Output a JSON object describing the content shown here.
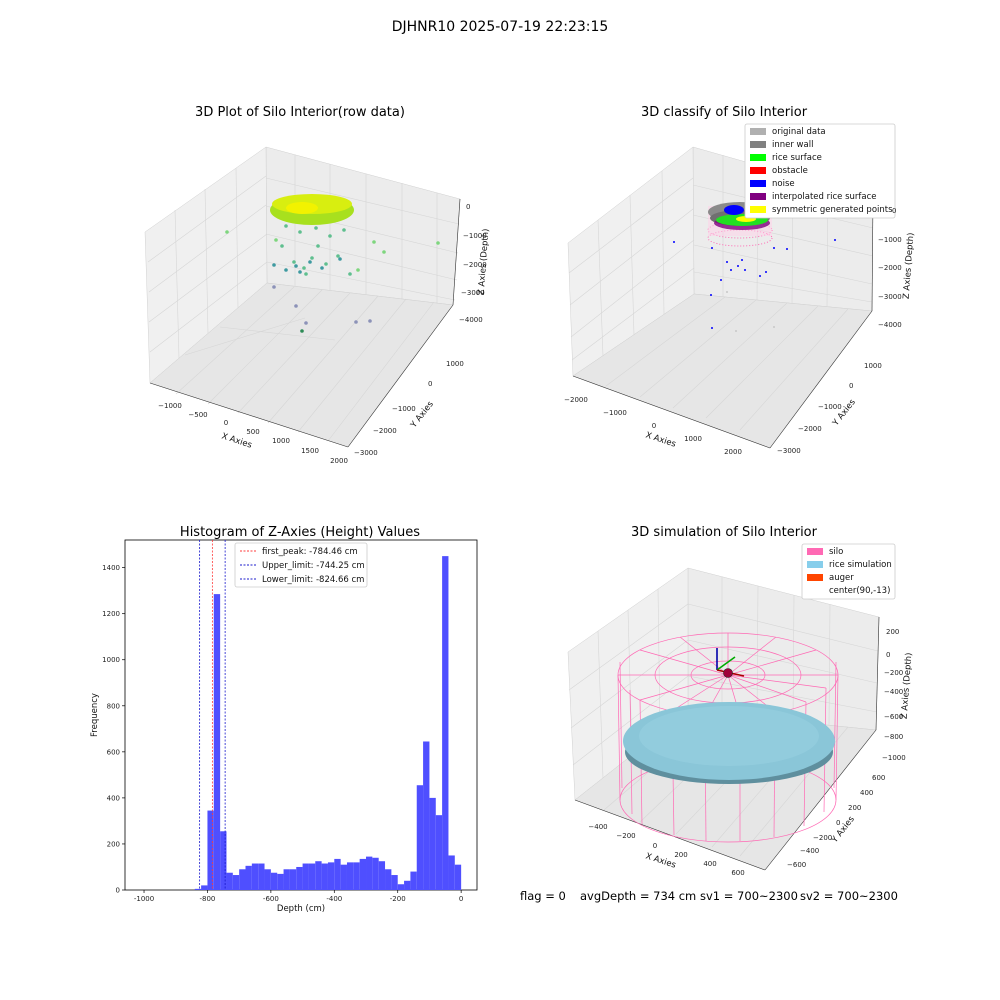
{
  "figure": {
    "title": "DJHNR10 2025-07-19 22:23:15",
    "status_line": {
      "flag": "flag = 0",
      "avg_depth": "avgDepth = 734 cm",
      "sv1": "sv1 = 700~2300",
      "sv2": "sv2 = 700~2300"
    }
  },
  "colors": {
    "histogram_bar": "#4f4fff",
    "peak_line": "#ff3b3b",
    "limit_line": "#1b1bcc",
    "silo": "#ff69b4",
    "rice_simulation": "#87ceeb",
    "auger": "#ff4500",
    "original_data": "#b0b0b0",
    "inner_wall": "#808080",
    "rice_surface": "#00ff00",
    "obstacle": "#ff0000",
    "noise": "#0000ff",
    "interpolated_rice_surface": "#800080",
    "symmetric_generated_points": "#ffff00"
  },
  "chart_data": [
    {
      "type": "scatter",
      "projection": "3d",
      "title": "3D Plot of Silo Interior(row data)",
      "xlabel": "X Axies",
      "ylabel": "Y Axies",
      "zlabel": "Z Axies (Depth)",
      "x_ticks": [
        "−1000",
        "−500",
        "0",
        "500",
        "1000",
        "1500",
        "2000"
      ],
      "y_ticks": [
        "1000",
        "0",
        "−1000",
        "−2000",
        "−3000"
      ],
      "z_ticks": [
        "0",
        "−1000",
        "−2000",
        "−3000",
        "−4000"
      ],
      "xlim": [
        -1200,
        2000
      ],
      "ylim": [
        -3000,
        1500
      ],
      "zlim": [
        -4500,
        300
      ]
    },
    {
      "type": "scatter",
      "projection": "3d",
      "title": "3D classify of Silo Interior",
      "xlabel": "X Axies",
      "ylabel": "Y Axies",
      "zlabel": "Z Axies (Depth)",
      "x_ticks": [
        "−2000",
        "−1000",
        "0",
        "1000",
        "2000"
      ],
      "y_ticks": [
        "1000",
        "0",
        "−1000",
        "−2000",
        "−3000"
      ],
      "z_ticks": [
        "0",
        "−1000",
        "−2000",
        "−3000",
        "−4000"
      ],
      "legend_position": "top-right",
      "legend": [
        {
          "label": "original data",
          "color": "#b0b0b0"
        },
        {
          "label": "inner wall",
          "color": "#808080"
        },
        {
          "label": "rice surface",
          "color": "#00ff00"
        },
        {
          "label": "obstacle",
          "color": "#ff0000"
        },
        {
          "label": "noise",
          "color": "#0000ff"
        },
        {
          "label": "interpolated rice surface",
          "color": "#800080"
        },
        {
          "label": "symmetric generated points",
          "color": "#ffff00"
        }
      ]
    },
    {
      "type": "bar",
      "title": "Histogram of Z-Axies (Height) Values",
      "xlabel": "Depth (cm)",
      "ylabel": "Frequency",
      "xlim": [
        -1060,
        50
      ],
      "ylim": [
        0,
        1520
      ],
      "x_ticks": [
        -1000,
        -800,
        -600,
        -400,
        -200,
        0
      ],
      "y_ticks": [
        0,
        200,
        400,
        600,
        800,
        1000,
        1200,
        1400
      ],
      "bin_width": 20,
      "bin_starts": [
        -840,
        -820,
        -800,
        -780,
        -760,
        -740,
        -720,
        -700,
        -680,
        -660,
        -640,
        -620,
        -600,
        -580,
        -560,
        -540,
        -520,
        -500,
        -480,
        -460,
        -440,
        -420,
        -400,
        -380,
        -360,
        -340,
        -320,
        -300,
        -280,
        -260,
        -240,
        -220,
        -200,
        -180,
        -160,
        -140,
        -120,
        -100,
        -80,
        -60,
        -40,
        -20
      ],
      "values": [
        5,
        20,
        345,
        1285,
        255,
        75,
        65,
        90,
        105,
        115,
        115,
        90,
        75,
        70,
        90,
        90,
        100,
        115,
        115,
        125,
        115,
        120,
        135,
        110,
        120,
        120,
        135,
        145,
        140,
        125,
        90,
        65,
        25,
        40,
        80,
        455,
        645,
        400,
        325,
        1450,
        150,
        110
      ],
      "legend_position": "top-center",
      "reference_lines": [
        {
          "label": "first_peak: -784.46 cm",
          "x": -784.46,
          "style": "dashed",
          "color": "#ff3b3b"
        },
        {
          "label": "Upper_limit: -744.25 cm",
          "x": -744.25,
          "style": "dashed",
          "color": "#1b1bcc"
        },
        {
          "label": "Lower_limit: -824.66 cm",
          "x": -824.66,
          "style": "dashed",
          "color": "#1b1bcc"
        }
      ]
    },
    {
      "type": "surface",
      "projection": "3d",
      "title": "3D simulation of Silo Interior",
      "xlabel": "X Axies",
      "ylabel": "Y Axies",
      "zlabel": "Z Axies (Depth)",
      "x_ticks": [
        "−400",
        "−200",
        "0",
        "200",
        "400",
        "600"
      ],
      "y_ticks": [
        "600",
        "400",
        "200",
        "0",
        "−200",
        "−400",
        "−600"
      ],
      "z_ticks": [
        "200",
        "0",
        "−200",
        "−400",
        "−600",
        "−800",
        "−1000"
      ],
      "legend_position": "top-right",
      "legend": [
        {
          "label": "silo",
          "color": "#ff69b4"
        },
        {
          "label": "rice simulation",
          "color": "#87ceeb"
        },
        {
          "label": "auger",
          "color": "#ff4500"
        },
        {
          "label": "center(90,-13)",
          "color": ""
        }
      ]
    }
  ]
}
